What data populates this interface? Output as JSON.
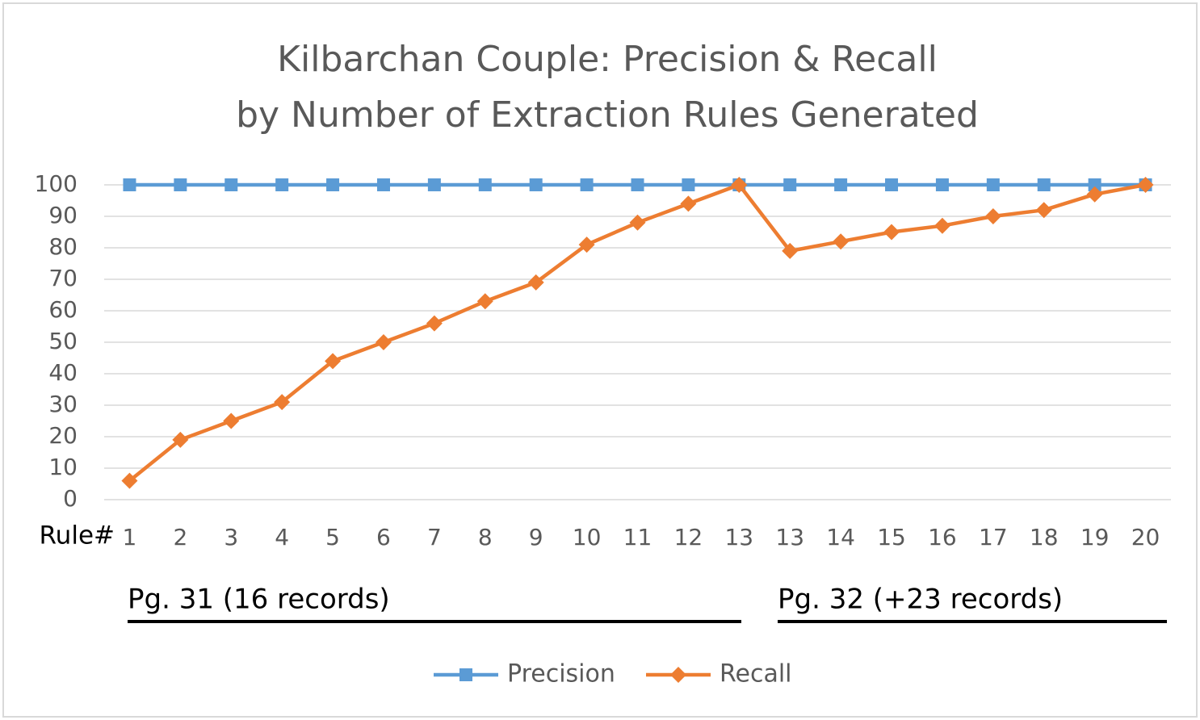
{
  "chart_data": {
    "type": "line",
    "title": [
      "Kilbarchan Couple: Precision & Recall",
      "by Number of Extraction Rules Generated"
    ],
    "x_label": "Rule#",
    "annotations": [
      "Pg. 31 (16 records)",
      "Pg. 32 (+23 records)"
    ],
    "categories": [
      "1",
      "2",
      "3",
      "4",
      "5",
      "6",
      "7",
      "8",
      "9",
      "10",
      "11",
      "12",
      "13",
      "13",
      "14",
      "15",
      "16",
      "17",
      "18",
      "19",
      "20"
    ],
    "series": [
      {
        "name": "Precision",
        "color": "#5b9bd5",
        "marker": "square",
        "values": [
          100,
          100,
          100,
          100,
          100,
          100,
          100,
          100,
          100,
          100,
          100,
          100,
          100,
          100,
          100,
          100,
          100,
          100,
          100,
          100,
          100
        ]
      },
      {
        "name": "Recall",
        "color": "#ed7d31",
        "marker": "diamond",
        "values": [
          6,
          19,
          25,
          31,
          44,
          50,
          56,
          63,
          69,
          81,
          88,
          94,
          100,
          79,
          82,
          85,
          87,
          90,
          92,
          97,
          100
        ]
      }
    ],
    "ylim": [
      0,
      100
    ],
    "yticks": [
      0,
      10,
      20,
      30,
      40,
      50,
      60,
      70,
      80,
      90,
      100
    ],
    "grid": true,
    "legend": "bottom"
  }
}
